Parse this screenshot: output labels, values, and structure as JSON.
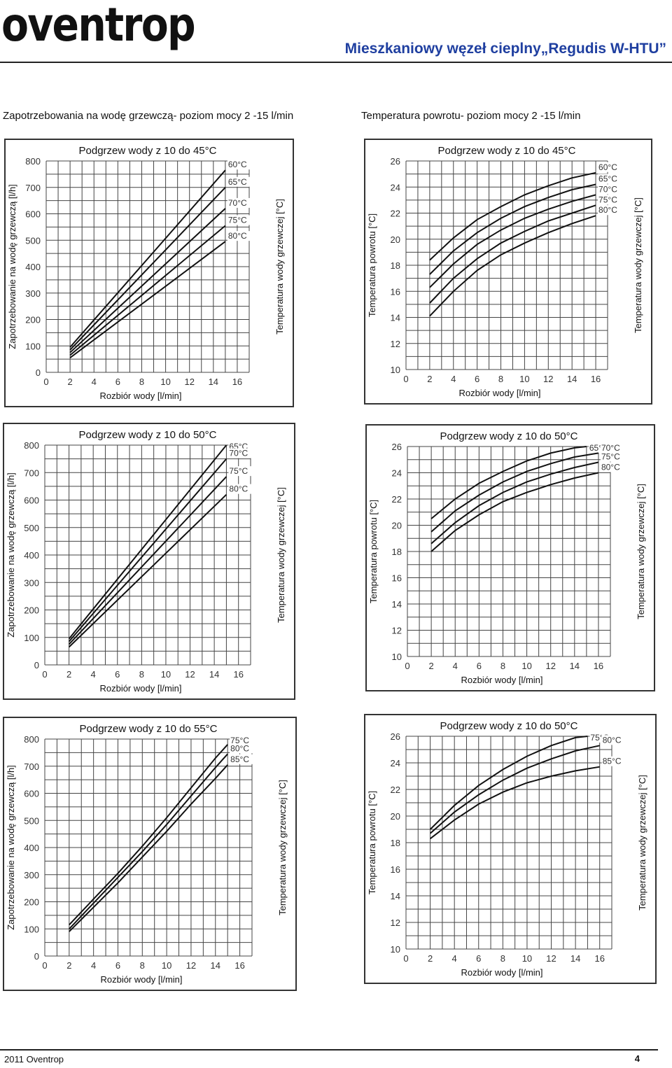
{
  "header": {
    "logo": "oventrop",
    "title": "Mieszkaniowy węzeł cieplny„Regudis W-HTU”"
  },
  "sections": {
    "left_title": "Zapotrzebowania na wodę grzewczą- poziom mocy 2 -15 l/min",
    "right_title": "Temperatura powrotu- poziom mocy 2 -15 l/min"
  },
  "footer": {
    "copyright": "2011 Oventrop",
    "page": "4"
  },
  "chart_data": [
    {
      "id": "demand-45",
      "type": "line",
      "title": "Podgrzew wody z 10 do 45°C",
      "xlabel": "Rozbiór wody [l/min]",
      "ylabel": "Zapotrzebowanie na wodę grzewczą [l/h]",
      "y2label": "Temperatura wody grzewczej [°C]",
      "xlim": [
        0,
        17
      ],
      "ylim": [
        0,
        800
      ],
      "xticks": [
        0,
        2,
        4,
        6,
        8,
        10,
        12,
        14,
        16
      ],
      "yticks": [
        0,
        100,
        200,
        300,
        400,
        500,
        600,
        700,
        800
      ],
      "series": [
        {
          "name": "60°C",
          "x": [
            2,
            15
          ],
          "y": [
            95,
            765
          ]
        },
        {
          "name": "65°C",
          "x": [
            2,
            15
          ],
          "y": [
            85,
            700
          ]
        },
        {
          "name": "70°C",
          "x": [
            2,
            15
          ],
          "y": [
            75,
            620
          ]
        },
        {
          "name": "75°C",
          "x": [
            2,
            15
          ],
          "y": [
            65,
            555
          ]
        },
        {
          "name": "80°C",
          "x": [
            2,
            15
          ],
          "y": [
            55,
            495
          ]
        }
      ]
    },
    {
      "id": "return-45",
      "type": "line",
      "title": "Podgrzew wody z 10 do 45°C",
      "xlabel": "Rozbiór wody [l/min]",
      "ylabel": "Temperatura powrotu [°C]",
      "y2label": "Temperatura wody grzewczej [°C]",
      "xlim": [
        0,
        17
      ],
      "ylim": [
        10,
        26
      ],
      "xticks": [
        0,
        2,
        4,
        6,
        8,
        10,
        12,
        14,
        16
      ],
      "yticks": [
        10,
        12,
        14,
        16,
        18,
        20,
        22,
        24,
        26
      ],
      "series": [
        {
          "name": "60°C",
          "x": [
            2,
            4,
            6,
            8,
            10,
            12,
            14,
            16
          ],
          "y": [
            18.4,
            20.1,
            21.5,
            22.5,
            23.4,
            24.1,
            24.7,
            25.1
          ]
        },
        {
          "name": "65°C",
          "x": [
            2,
            4,
            6,
            8,
            10,
            12,
            14,
            16
          ],
          "y": [
            17.3,
            19.1,
            20.5,
            21.6,
            22.5,
            23.2,
            23.8,
            24.2
          ]
        },
        {
          "name": "70°C",
          "x": [
            2,
            4,
            6,
            8,
            10,
            12,
            14,
            16
          ],
          "y": [
            16.3,
            18.1,
            19.6,
            20.7,
            21.6,
            22.3,
            22.9,
            23.4
          ]
        },
        {
          "name": "75°C",
          "x": [
            2,
            4,
            6,
            8,
            10,
            12,
            14,
            16
          ],
          "y": [
            15.1,
            17.0,
            18.5,
            19.7,
            20.6,
            21.4,
            22.0,
            22.6
          ]
        },
        {
          "name": "80°C",
          "x": [
            2,
            4,
            6,
            8,
            10,
            12,
            14,
            16
          ],
          "y": [
            14.1,
            16.0,
            17.6,
            18.8,
            19.7,
            20.5,
            21.2,
            21.8
          ]
        }
      ]
    },
    {
      "id": "demand-50",
      "type": "line",
      "title": "Podgrzew wody z 10 do 50°C",
      "xlabel": "Rozbiór wody [l/min]",
      "ylabel": "Zapotrzebowanie na wodę grzewczą [l/h]",
      "y2label": "Temperatura wody grzewczej [°C]",
      "xlim": [
        0,
        17
      ],
      "ylim": [
        0,
        800
      ],
      "xticks": [
        0,
        2,
        4,
        6,
        8,
        10,
        12,
        14,
        16
      ],
      "yticks": [
        0,
        100,
        200,
        300,
        400,
        500,
        600,
        700,
        800
      ],
      "series": [
        {
          "name": "65°C",
          "x": [
            2,
            15
          ],
          "y": [
            95,
            800
          ]
        },
        {
          "name": "70°C",
          "x": [
            2,
            15
          ],
          "y": [
            85,
            750
          ]
        },
        {
          "name": "75°C",
          "x": [
            2,
            15
          ],
          "y": [
            75,
            685
          ]
        },
        {
          "name": "80°C",
          "x": [
            2,
            15
          ],
          "y": [
            65,
            620
          ]
        }
      ]
    },
    {
      "id": "return-50",
      "type": "line",
      "title": "Podgrzew wody z 10 do 50°C",
      "xlabel": "Rozbiór wody [l/min]",
      "ylabel": "Temperatura powrotu [°C]",
      "y2label": "Temperatura wody grzewczej [°C]",
      "xlim": [
        0,
        17
      ],
      "ylim": [
        10,
        26
      ],
      "xticks": [
        0,
        2,
        4,
        6,
        8,
        10,
        12,
        14,
        16
      ],
      "yticks": [
        10,
        12,
        14,
        16,
        18,
        20,
        22,
        24,
        26
      ],
      "series": [
        {
          "name": "65°C",
          "x": [
            2,
            4,
            6,
            8,
            10,
            12,
            14,
            15
          ],
          "y": [
            20.5,
            22.0,
            23.2,
            24.1,
            24.9,
            25.5,
            25.9,
            26.0
          ]
        },
        {
          "name": "70°C",
          "x": [
            2,
            4,
            6,
            8,
            10,
            12,
            14,
            16
          ],
          "y": [
            19.5,
            21.1,
            22.3,
            23.3,
            24.1,
            24.7,
            25.2,
            25.5
          ]
        },
        {
          "name": "75°C",
          "x": [
            2,
            4,
            6,
            8,
            10,
            12,
            14,
            16
          ],
          "y": [
            18.6,
            20.2,
            21.5,
            22.5,
            23.3,
            23.9,
            24.4,
            24.8
          ]
        },
        {
          "name": "80°C",
          "x": [
            2,
            4,
            6,
            8,
            10,
            12,
            14,
            16
          ],
          "y": [
            18.0,
            19.6,
            20.8,
            21.8,
            22.5,
            23.1,
            23.6,
            24.0
          ]
        }
      ]
    },
    {
      "id": "demand-55",
      "type": "line",
      "title": "Podgrzew wody z 10 do 55°C",
      "xlabel": "Rozbiór wody [l/min]",
      "ylabel": "Zapotrzebowanie na wodę grzewczą [l/h]",
      "y2label": "Temperatura wody grzewczej [°C]",
      "xlim": [
        0,
        17
      ],
      "ylim": [
        0,
        800
      ],
      "xticks": [
        0,
        2,
        4,
        6,
        8,
        10,
        12,
        14,
        16
      ],
      "yticks": [
        0,
        100,
        200,
        300,
        400,
        500,
        600,
        700,
        800
      ],
      "series": [
        {
          "name": "75°C",
          "x": [
            2,
            4,
            6,
            8,
            10,
            12,
            14,
            15
          ],
          "y": [
            115,
            210,
            305,
            405,
            510,
            620,
            730,
            780
          ]
        },
        {
          "name": "80°C",
          "x": [
            2,
            4,
            6,
            8,
            10,
            12,
            14,
            15
          ],
          "y": [
            100,
            195,
            290,
            385,
            485,
            590,
            695,
            745
          ]
        },
        {
          "name": "85°C",
          "x": [
            2,
            4,
            6,
            8,
            10,
            12,
            14,
            15
          ],
          "y": [
            90,
            180,
            270,
            365,
            460,
            560,
            655,
            705
          ]
        }
      ]
    },
    {
      "id": "return-55",
      "type": "line",
      "title": "Podgrzew wody z 10 do 50°C",
      "xlabel": "Rozbiór wody [l/min]",
      "ylabel": "Temperatura powrotu [°C]",
      "y2label": "Temperatura wody grzewczej [°C]",
      "xlim": [
        0,
        17
      ],
      "ylim": [
        10,
        26
      ],
      "xticks": [
        0,
        2,
        4,
        6,
        8,
        10,
        12,
        14,
        16
      ],
      "yticks": [
        10,
        12,
        14,
        16,
        18,
        20,
        22,
        24,
        26
      ],
      "series": [
        {
          "name": "75°C",
          "x": [
            2,
            4,
            6,
            8,
            10,
            12,
            14,
            15
          ],
          "y": [
            19.0,
            20.8,
            22.3,
            23.5,
            24.5,
            25.3,
            25.9,
            26.0
          ]
        },
        {
          "name": "80°C",
          "x": [
            2,
            4,
            6,
            8,
            10,
            12,
            14,
            16
          ],
          "y": [
            18.7,
            20.3,
            21.6,
            22.7,
            23.6,
            24.3,
            24.9,
            25.3
          ]
        },
        {
          "name": "85°C",
          "x": [
            2,
            4,
            6,
            8,
            10,
            12,
            14,
            16
          ],
          "y": [
            18.3,
            19.7,
            20.9,
            21.8,
            22.5,
            23.0,
            23.4,
            23.7
          ]
        }
      ]
    }
  ]
}
